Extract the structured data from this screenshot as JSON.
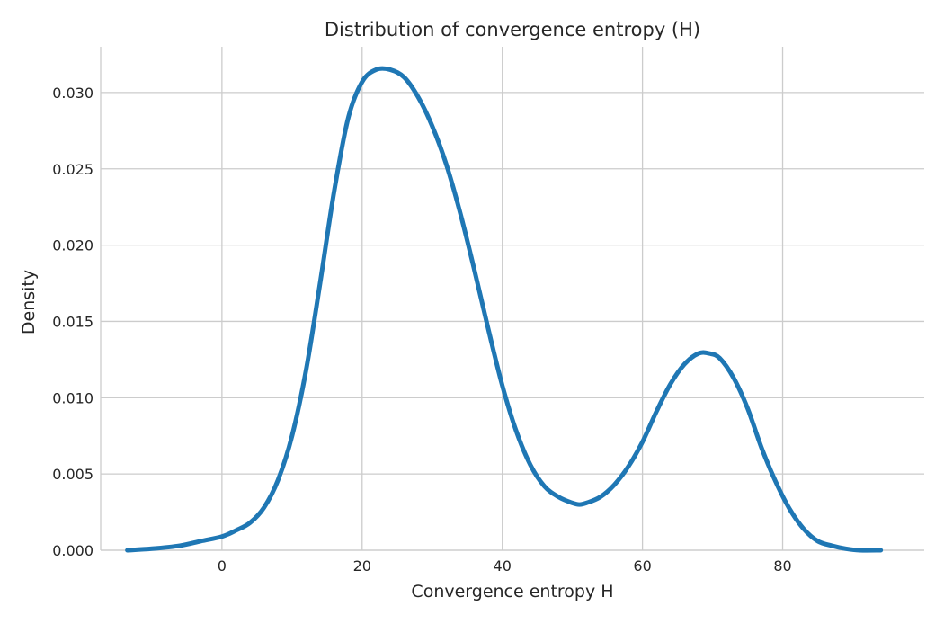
{
  "chart_data": {
    "type": "line",
    "title": "Distribution of convergence entropy (H)",
    "xlabel": "Convergence entropy H",
    "ylabel": "Density",
    "xlim": [
      -17.3,
      100.2
    ],
    "ylim": [
      0,
      0.033
    ],
    "xticks": [
      0,
      20,
      40,
      60,
      80
    ],
    "xtick_labels": [
      "0",
      "20",
      "40",
      "60",
      "80"
    ],
    "yticks": [
      0.0,
      0.005,
      0.01,
      0.015,
      0.02,
      0.025,
      0.03
    ],
    "ytick_labels": [
      "0.000",
      "0.005",
      "0.010",
      "0.015",
      "0.020",
      "0.025",
      "0.030"
    ],
    "grid": true,
    "color": "#1f77b4",
    "series": [
      {
        "x": [
          -13.5,
          -10,
          -6,
          -3,
          0,
          2,
          4,
          6,
          8,
          10,
          12,
          14,
          16,
          18,
          20,
          22,
          24,
          26,
          28,
          30,
          32,
          34,
          36,
          38,
          40,
          42,
          44,
          46,
          48,
          50,
          51,
          52,
          54,
          56,
          58,
          60,
          62,
          64,
          66,
          68,
          69.5,
          71,
          73,
          75,
          77,
          79,
          81,
          83,
          85,
          87,
          89,
          91,
          94
        ],
        "y": [
          0.0,
          0.0001,
          0.0003,
          0.0006,
          0.0009,
          0.0013,
          0.0018,
          0.0028,
          0.0046,
          0.0075,
          0.0118,
          0.0175,
          0.0235,
          0.0283,
          0.0307,
          0.0315,
          0.0315,
          0.031,
          0.0297,
          0.0278,
          0.0253,
          0.0221,
          0.0184,
          0.0145,
          0.0108,
          0.0078,
          0.0056,
          0.0042,
          0.0035,
          0.0031,
          0.003,
          0.0031,
          0.0035,
          0.0043,
          0.0055,
          0.0071,
          0.0091,
          0.0109,
          0.0122,
          0.0129,
          0.0129,
          0.0126,
          0.0113,
          0.0093,
          0.0067,
          0.0045,
          0.0027,
          0.0014,
          0.0006,
          0.0003,
          0.0001,
          0.0,
          0.0
        ]
      }
    ]
  }
}
